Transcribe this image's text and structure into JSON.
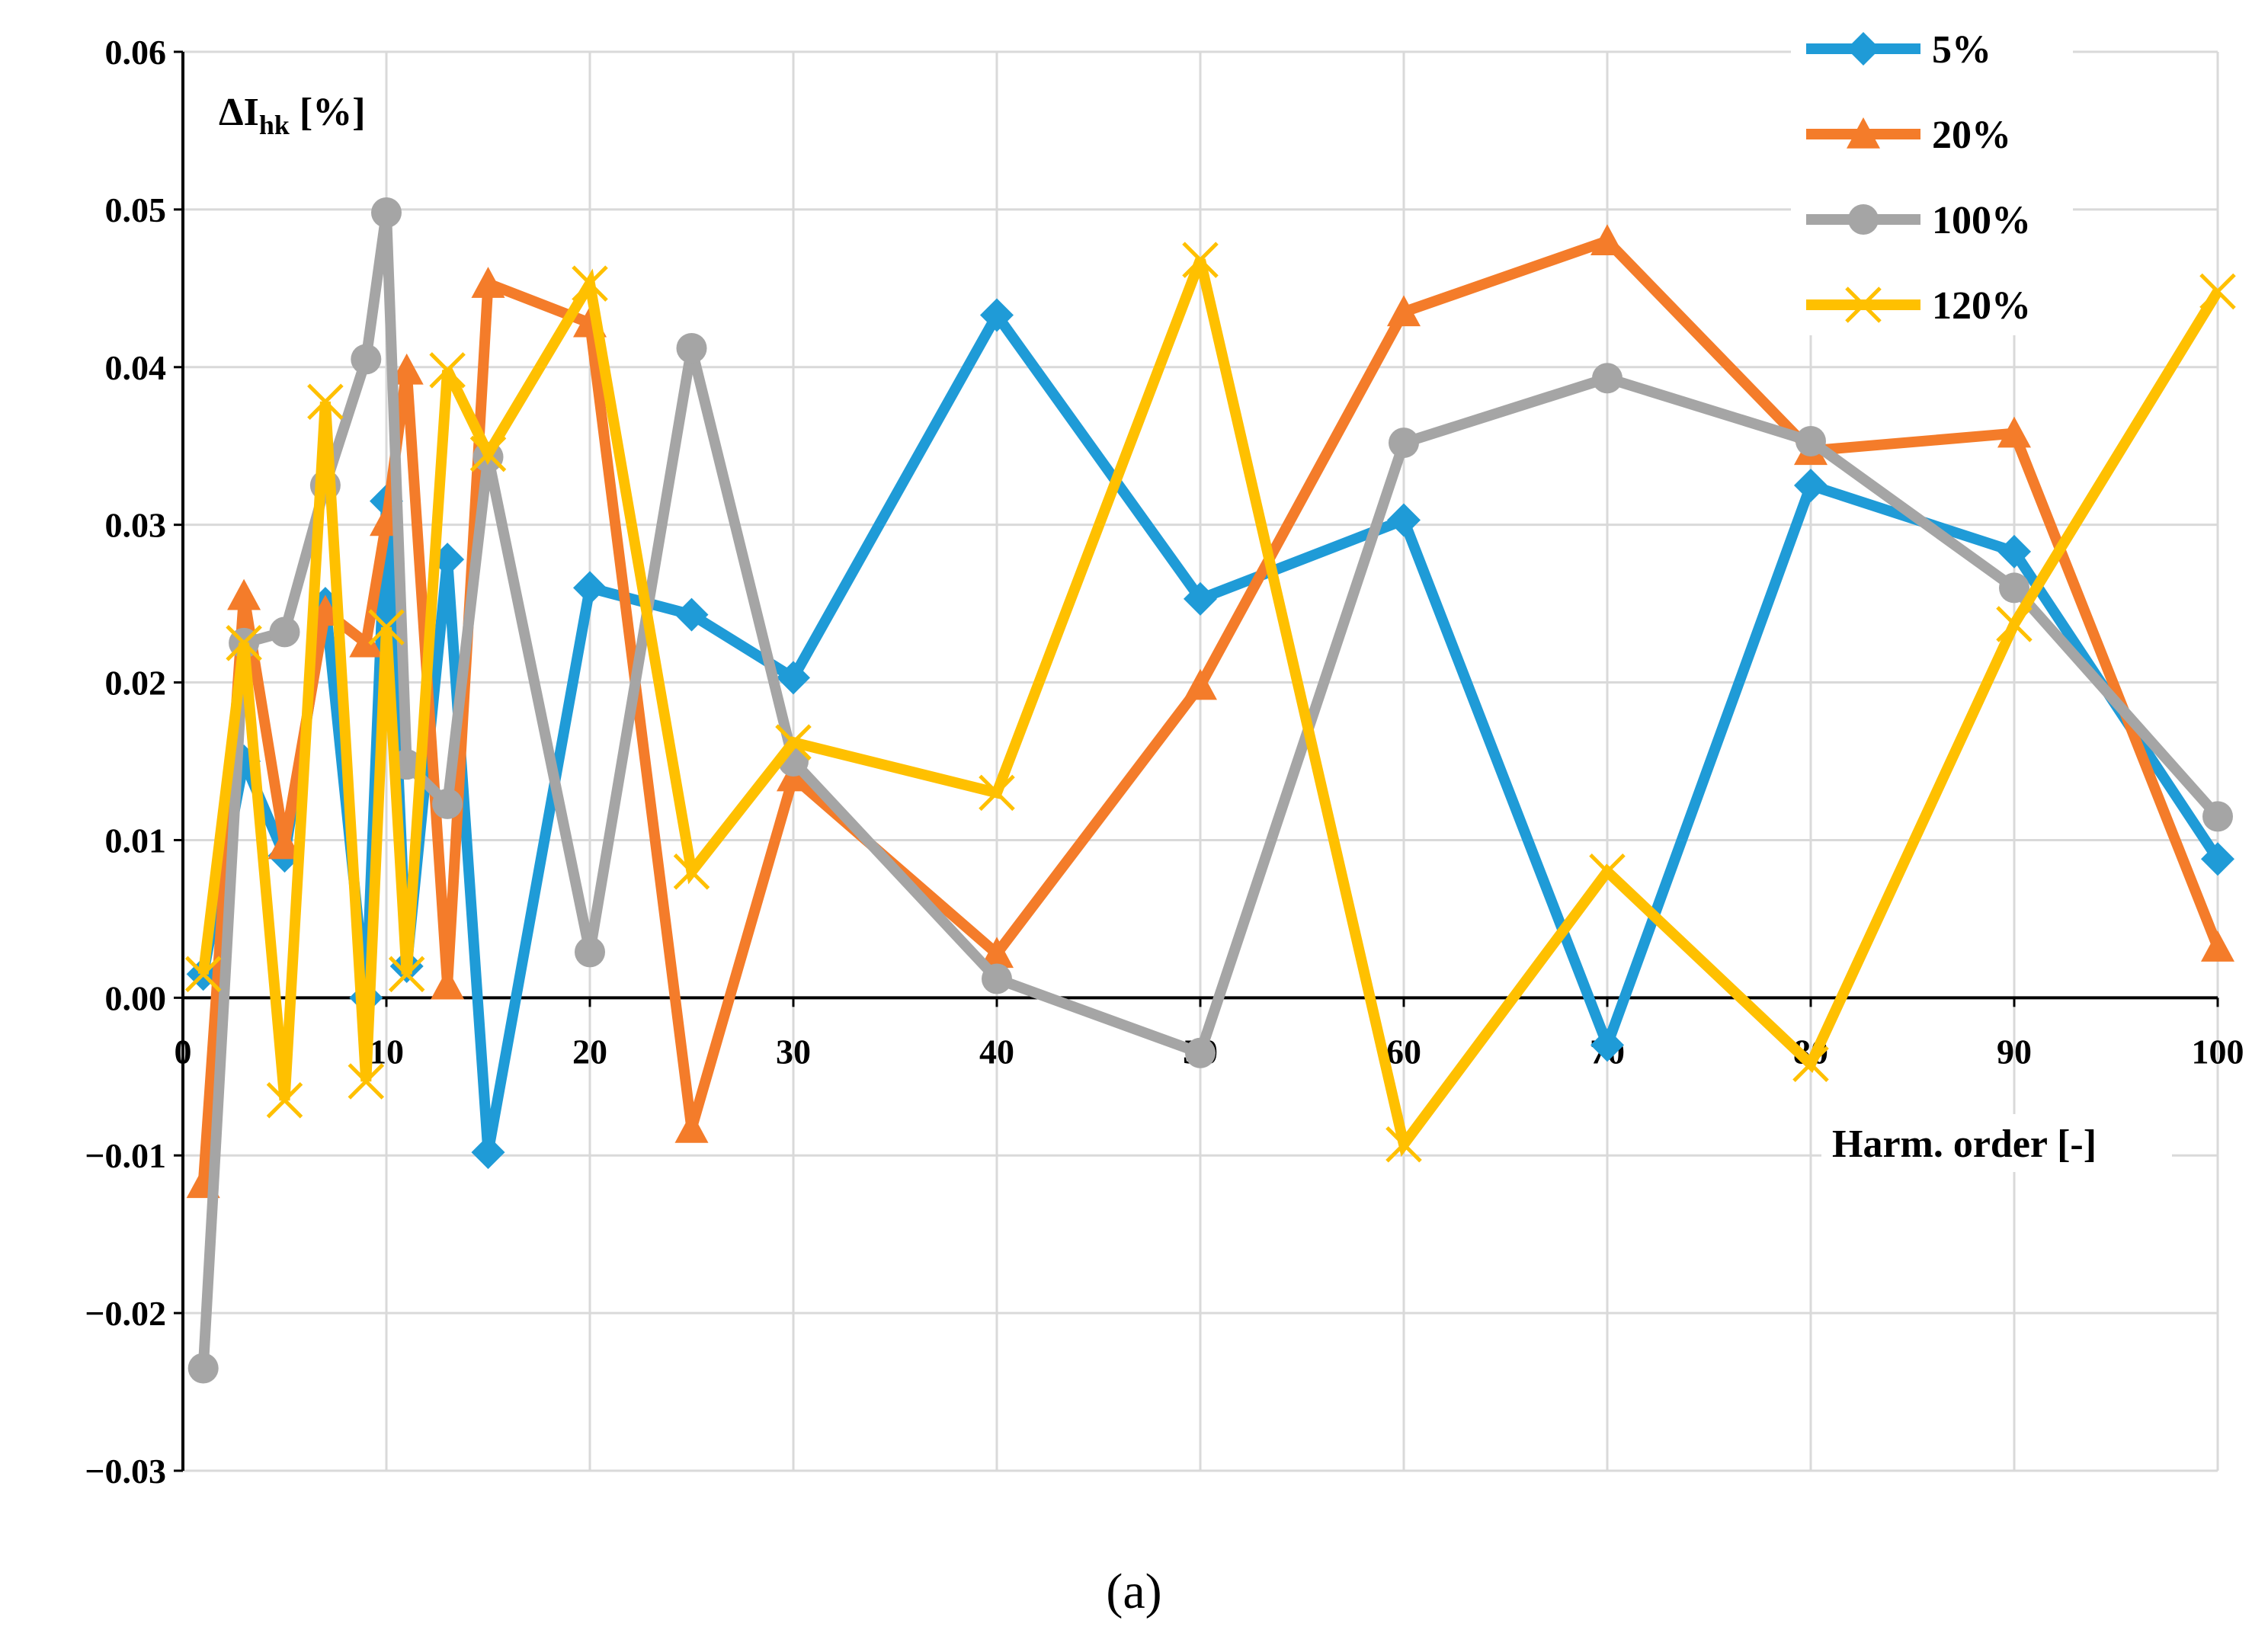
{
  "chart_data": {
    "type": "line",
    "title": "",
    "ylabel_main": "ΔI",
    "ylabel_sub": "hk",
    "ylabel_unit": " [%]",
    "xlabel": "Harm. order [-]",
    "caption": "(a)",
    "xlim": [
      0,
      100
    ],
    "ylim": [
      -0.03,
      0.06
    ],
    "xticks": [
      0,
      10,
      20,
      30,
      40,
      50,
      60,
      70,
      80,
      90,
      100
    ],
    "xtick_labels": [
      "0",
      "10",
      "20",
      "30",
      "40",
      "50",
      "60",
      "70",
      "80",
      "90",
      "100"
    ],
    "yticks": [
      -0.03,
      -0.02,
      -0.01,
      0.0,
      0.01,
      0.02,
      0.03,
      0.04,
      0.05,
      0.06
    ],
    "ytick_labels": [
      "−0.03",
      "−0.02",
      "−0.01",
      "0.00",
      "0.01",
      "0.02",
      "0.03",
      "0.04",
      "0.05",
      "0.06"
    ],
    "grid": true,
    "legend_position": "top-right",
    "x": [
      1,
      3,
      5,
      7,
      9,
      10,
      11,
      13,
      15,
      20,
      25,
      30,
      40,
      50,
      60,
      70,
      80,
      90,
      100
    ],
    "series": [
      {
        "name": "5%",
        "color": "#1f9bd7",
        "marker": "diamond",
        "values": [
          0.0015,
          0.015,
          0.009,
          0.025,
          0.0,
          0.0315,
          0.002,
          0.0278,
          -0.0098,
          0.026,
          0.0243,
          0.0203,
          0.0433,
          0.0253,
          0.0303,
          -0.003,
          0.0325,
          0.0283,
          0.0088
        ]
      },
      {
        "name": "20%",
        "color": "#f47c2a",
        "marker": "triangle",
        "values": [
          -0.0118,
          0.0255,
          0.0097,
          0.0245,
          0.0225,
          0.0302,
          0.0398,
          0.0008,
          0.0453,
          0.0428,
          -0.0083,
          0.014,
          0.0028,
          0.0198,
          0.0435,
          0.048,
          0.0347,
          0.0358,
          0.0032
        ]
      },
      {
        "name": "100%",
        "color": "#a5a5a5",
        "marker": "circle",
        "values": [
          -0.0235,
          0.0225,
          0.0232,
          0.0325,
          0.0405,
          0.0498,
          0.0148,
          0.0123,
          0.0343,
          0.0029,
          0.0412,
          0.015,
          0.0012,
          -0.0035,
          0.0352,
          0.0393,
          0.0353,
          0.026,
          0.0115
        ]
      },
      {
        "name": "120%",
        "color": "#ffc000",
        "marker": "x",
        "values": [
          0.0015,
          0.0225,
          -0.0065,
          0.0378,
          -0.0053,
          0.0235,
          0.0015,
          0.0398,
          0.0345,
          0.0453,
          0.008,
          0.0162,
          0.013,
          0.0468,
          -0.0093,
          0.008,
          -0.0042,
          0.0237,
          0.0448
        ]
      }
    ]
  }
}
